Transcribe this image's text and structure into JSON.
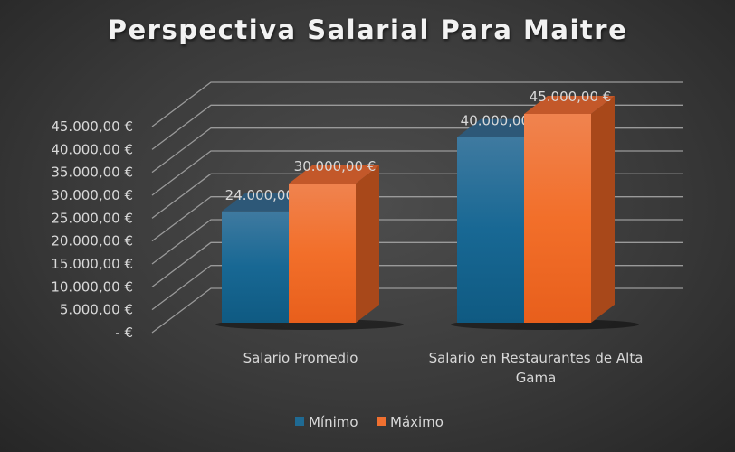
{
  "chart_data": {
    "type": "bar",
    "title": "Perspectiva Salarial Para Maitre",
    "categories": [
      "Salario Promedio",
      "Salario en Restaurantes de Alta Gama"
    ],
    "category_lines": [
      [
        "Salario Promedio"
      ],
      [
        "Salario en Restaurantes de Alta",
        "Gama"
      ]
    ],
    "series": [
      {
        "name": "Mínimo",
        "color": "#1f6a93",
        "values": [
          24000,
          40000
        ],
        "labels": [
          "24.000,00 €",
          "40.000,00 €"
        ]
      },
      {
        "name": "Máximo",
        "color": "#f07030",
        "values": [
          30000,
          45000
        ],
        "labels": [
          "30.000,00 €",
          "45.000,00 €"
        ]
      }
    ],
    "yticks": [
      "-  €",
      "5.000,00 €",
      "10.000,00 €",
      "15.000,00 €",
      "20.000,00 €",
      "25.000,00 €",
      "30.000,00 €",
      "35.000,00 €",
      "40.000,00 €",
      "45.000,00 €"
    ],
    "ylim": [
      0,
      45000
    ],
    "grid": true,
    "legend": "bottom"
  }
}
